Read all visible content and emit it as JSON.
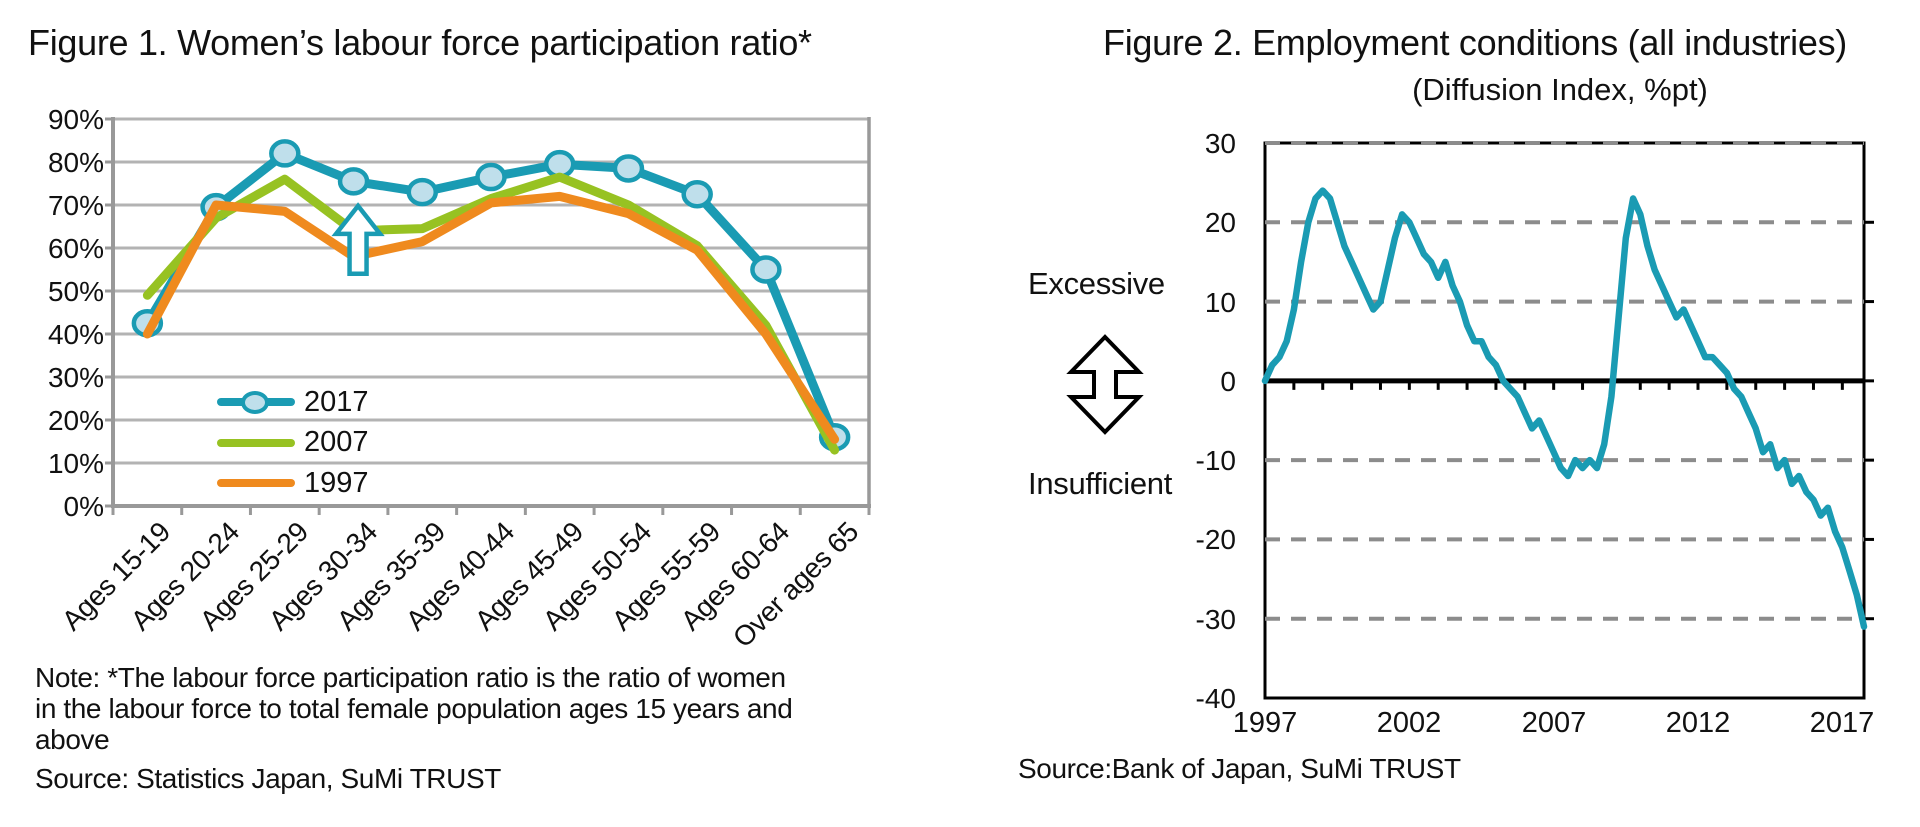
{
  "figure1": {
    "note_lines": [
      "Note: *The labour force participation ratio is the ratio of women",
      "in the labour force to total female population ages 15 years and",
      "above"
    ],
    "source": "Source: Statistics Japan, SuMi TRUST"
  },
  "figure2": {
    "source": "Source:Bank of Japan, SuMi TRUST"
  },
  "chart_data": [
    {
      "type": "line",
      "title": "Figure 1. Women’s labour force participation ratio*",
      "categories": [
        "Ages 15-19",
        "Ages 20-24",
        "Ages 25-29",
        "Ages 30-34",
        "Ages 35-39",
        "Ages 40-44",
        "Ages 45-49",
        "Ages 50-54",
        "Ages 55-59",
        "Ages 60-64",
        "Over ages 65"
      ],
      "series": [
        {
          "name": "2017",
          "color": "#1a9bb3",
          "marker": "circle",
          "marker_fill": "#bfdfeb",
          "values": [
            42.5,
            69.5,
            82,
            75.5,
            73,
            76.5,
            79.5,
            78.5,
            72.5,
            55,
            16
          ]
        },
        {
          "name": "2007",
          "color": "#97c222",
          "marker": "none",
          "values": [
            49,
            67,
            76,
            64,
            64.5,
            71.5,
            76.5,
            70,
            60.5,
            42,
            13
          ]
        },
        {
          "name": "1997",
          "color": "#ef8a1e",
          "marker": "none",
          "values": [
            40,
            70,
            68.5,
            58,
            61.5,
            70.5,
            72,
            68,
            59.5,
            40,
            15.5
          ]
        }
      ],
      "ylim": [
        0,
        90
      ],
      "ytick_values": [
        90,
        80,
        70,
        60,
        50,
        40,
        30,
        20,
        10,
        0
      ],
      "ytick_labels": [
        "90%",
        "80%",
        "70%",
        "60%",
        "50%",
        "40%",
        "30%",
        "20%",
        "10%",
        "0%"
      ],
      "grid": true,
      "legend_position": "inside-lower-left",
      "annotation": {
        "type": "up-arrow",
        "category_index": 3,
        "from_value": 54,
        "to_value": 69.8,
        "color": "#1a9bb3"
      },
      "grid_color": "#b3b3b3",
      "axis_color": "#999999"
    },
    {
      "type": "line",
      "title": "Figure 2. Employment conditions (all industries)",
      "subtitle": "(Diffusion Index, %pt)",
      "left_labels": {
        "top": "Excessive",
        "bottom": "Insufficient",
        "arrow_icon": "double-vertical-arrow"
      },
      "x_start_year": 1997,
      "frequency": "quarterly",
      "xtick_labels": [
        "1997",
        "2002",
        "2007",
        "2012",
        "2017"
      ],
      "xtick_year_index": [
        0,
        5,
        10,
        15,
        20
      ],
      "ylim": [
        -40,
        30
      ],
      "ytick_values": [
        30,
        20,
        10,
        0,
        -10,
        -20,
        -30,
        -40
      ],
      "ytick_labels": [
        "30",
        "20",
        "10",
        "0",
        "-10",
        "-20",
        "-30",
        "-40"
      ],
      "gridlines_dashed": [
        30,
        20,
        10,
        -10,
        -20,
        -30
      ],
      "zero_line": true,
      "line_color": "#1a9bb3",
      "grid_color": "#8c8c8c",
      "values": [
        0,
        2,
        3,
        5,
        9,
        15,
        20,
        23,
        24,
        23,
        20,
        17,
        15,
        13,
        11,
        9,
        10,
        14,
        18,
        21,
        20,
        18,
        16,
        15,
        13,
        15,
        12,
        10,
        7,
        5,
        5,
        3,
        2,
        0,
        -1,
        -2,
        -4,
        -6,
        -5,
        -7,
        -9,
        -11,
        -12,
        -10,
        -11,
        -10,
        -11,
        -8,
        -2,
        8,
        18,
        23,
        21,
        17,
        14,
        12,
        10,
        8,
        9,
        7,
        5,
        3,
        3,
        2,
        1,
        -1,
        -2,
        -4,
        -6,
        -9,
        -8,
        -11,
        -10,
        -13,
        -12,
        -14,
        -15,
        -17,
        -16,
        -19,
        -21,
        -24,
        -27,
        -31
      ]
    }
  ]
}
